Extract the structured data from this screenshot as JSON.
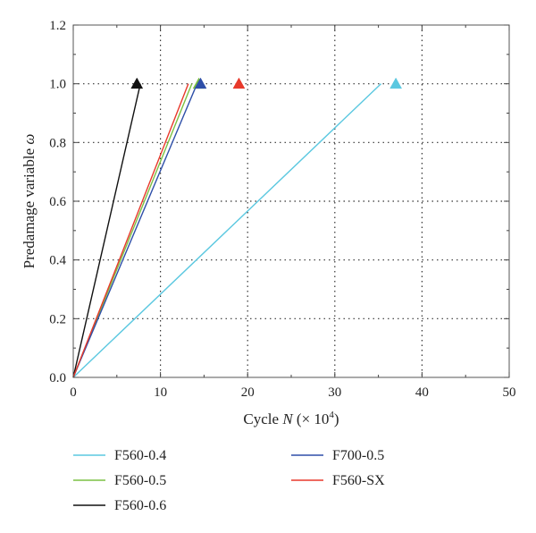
{
  "chart_data": {
    "type": "line",
    "title": "",
    "xlabel_parts": [
      "Cycle ",
      "N",
      " (× 10",
      "4",
      ")"
    ],
    "ylabel_parts": [
      "Predamage variable ",
      "ω"
    ],
    "xlim": [
      0,
      50
    ],
    "ylim": [
      0,
      1.2
    ],
    "xticks": [
      0,
      10,
      20,
      30,
      40,
      50
    ],
    "yticks": [
      0.0,
      0.2,
      0.4,
      0.6,
      0.8,
      1.0,
      1.2
    ],
    "xtick_labels": [
      "0",
      "10",
      "20",
      "30",
      "40",
      "50"
    ],
    "ytick_labels": [
      "0.0",
      "0.2",
      "0.4",
      "0.6",
      "0.8",
      "1.0",
      "1.2"
    ],
    "grid": "dotted",
    "legend_position": "below",
    "series": [
      {
        "name": "F560-0.4",
        "color": "#5bc8e0",
        "x": [
          0,
          35.3
        ],
        "y": [
          0,
          1.0
        ],
        "failure": [
          37.0,
          1.0
        ]
      },
      {
        "name": "F560-0.5",
        "color": "#7cc043",
        "x": [
          0,
          13.6
        ],
        "y": [
          0,
          1.0
        ],
        "failure": [
          14.4,
          1.0
        ]
      },
      {
        "name": "F560-0.6",
        "color": "#111111",
        "x": [
          0,
          7.7
        ],
        "y": [
          0,
          1.0
        ],
        "failure": [
          7.3,
          1.0
        ]
      },
      {
        "name": "F700-0.5",
        "color": "#2e4fa8",
        "x": [
          0,
          14.2
        ],
        "y": [
          0,
          1.0
        ],
        "failure": [
          14.6,
          1.0
        ]
      },
      {
        "name": "F560-SX",
        "color": "#e8392b",
        "x": [
          0,
          13.2
        ],
        "y": [
          0,
          1.0
        ],
        "failure": [
          19.0,
          1.0
        ]
      }
    ]
  }
}
